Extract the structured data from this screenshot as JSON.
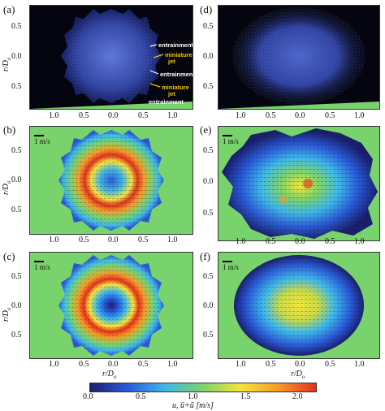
{
  "panels": {
    "a": {
      "label": "(a)"
    },
    "b": {
      "label": "(b)",
      "scale": "1 m/s"
    },
    "c": {
      "label": "(c)",
      "scale": "1 m/s"
    },
    "d": {
      "label": "(d)"
    },
    "e": {
      "label": "(e)",
      "scale": "1 m/s"
    },
    "f": {
      "label": "(f)",
      "scale": "1 m/s"
    }
  },
  "axes": {
    "ylabel": "r/D",
    "ylabel_sub": "o",
    "xlabel": "r/D",
    "xlabel_sub": "o",
    "y_ticks": [
      "0.5",
      "0.0",
      "0.5"
    ],
    "x_ticks": [
      "1.0",
      "0.5",
      "0.0",
      "0.5",
      "1.0"
    ]
  },
  "annotations": {
    "entrainment_top": "entrainment",
    "miniature_jet_top_1": "miniature",
    "miniature_jet_top_2": "jet",
    "entrainment_mid": "entrainment",
    "miniature_jet_bot_1": "miniature",
    "miniature_jet_bot_2": "jet",
    "entrainment_bot": "entrainment"
  },
  "colorbar": {
    "ticks": [
      "0.0",
      "0.5",
      "1.0",
      "1.5",
      "2.0"
    ],
    "label": "u, ū+ũ [m/s]",
    "colors": [
      "#1a1f6e",
      "#2a5bd7",
      "#3fb8e8",
      "#7ed36a",
      "#f4e43a",
      "#f59b2a",
      "#e2321e"
    ]
  },
  "colors": {
    "background_field": "#78d36c",
    "dark_bg": "#050510"
  }
}
